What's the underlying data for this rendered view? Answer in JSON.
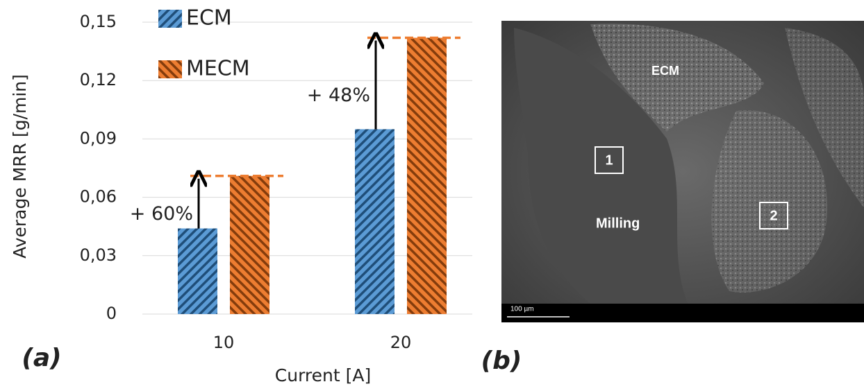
{
  "chart_data": {
    "type": "bar",
    "y_label": "Average MRR  [g/min]",
    "x_label": "Current [A]",
    "categories": [
      "10",
      "20"
    ],
    "series": [
      {
        "name": "ECM",
        "color": "#5b9bd5",
        "values": [
          0.044,
          0.095
        ]
      },
      {
        "name": "MECM",
        "color": "#ed7d31",
        "values": [
          0.071,
          0.142
        ]
      }
    ],
    "annotations": [
      "+ 60%",
      "+ 48%"
    ],
    "ylim": [
      0,
      0.15
    ],
    "yticks": [
      0,
      {
        "value": 0.03,
        "label": "0,03"
      },
      {
        "value": 0.06,
        "label": "0,06"
      },
      {
        "value": 0.09,
        "label": "0,09"
      },
      {
        "value": 0.12,
        "label": "0,12"
      },
      {
        "value": 0.15,
        "label": "0,15"
      }
    ],
    "grid": true,
    "panel_label": "(a)"
  },
  "image": {
    "panel_label": "(b)",
    "labels": [
      "ECM",
      "Milling",
      "1",
      "2"
    ],
    "scale_bar": "100 µm"
  }
}
